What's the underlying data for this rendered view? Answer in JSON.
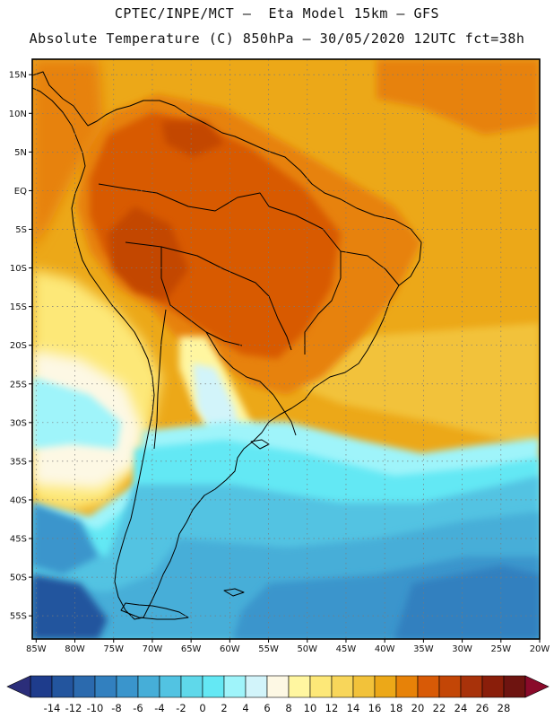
{
  "header": {
    "line1": "CPTEC/INPE/MCT –  Eta Model 15km – GFS",
    "line2": "Absolute Temperature (C) 850hPa – 30/05/2020 12UTC fct=38h"
  },
  "map": {
    "lat_labels": [
      "15N",
      "10N",
      "5N",
      "EQ",
      "5S",
      "10S",
      "15S",
      "20S",
      "25S",
      "30S",
      "35S",
      "40S",
      "45S",
      "50S",
      "55S"
    ],
    "lon_labels": [
      "85W",
      "80W",
      "75W",
      "70W",
      "65W",
      "60W",
      "55W",
      "50W",
      "45W",
      "40W",
      "35W",
      "30W",
      "25W",
      "20W"
    ],
    "lat_values": [
      15,
      10,
      5,
      0,
      -5,
      -10,
      -15,
      -20,
      -25,
      -30,
      -35,
      -40,
      -45,
      -50,
      -55
    ],
    "lon_values": [
      -85,
      -80,
      -75,
      -70,
      -65,
      -60,
      -55,
      -50,
      -45,
      -40,
      -35,
      -30,
      -25,
      -20
    ],
    "extent": {
      "lon_min": -85.5,
      "lon_max": -20,
      "lat_min": -58,
      "lat_max": 17
    }
  },
  "colorbar": {
    "levels": [
      "-14",
      "-12",
      "-10",
      "-8",
      "-6",
      "-4",
      "-2",
      "0",
      "2",
      "4",
      "6",
      "8",
      "10",
      "12",
      "14",
      "16",
      "18",
      "20",
      "22",
      "24",
      "26",
      "28"
    ],
    "colors": [
      "#1e3c8c",
      "#23559e",
      "#2b6aae",
      "#3280bf",
      "#3a95cc",
      "#46aed8",
      "#52c3e2",
      "#5fd8ea",
      "#64e8f4",
      "#9ff4fa",
      "#d2f4fa",
      "#fdf8e4",
      "#fff6a0",
      "#fde878",
      "#f8d65a",
      "#f2c23a",
      "#eca818",
      "#e78208",
      "#d85a06",
      "#c34606",
      "#a8320a",
      "#8a1e0a",
      "#6e1410"
    ],
    "under_color": "#2b2e7a",
    "over_color": "#8a0a2a"
  }
}
